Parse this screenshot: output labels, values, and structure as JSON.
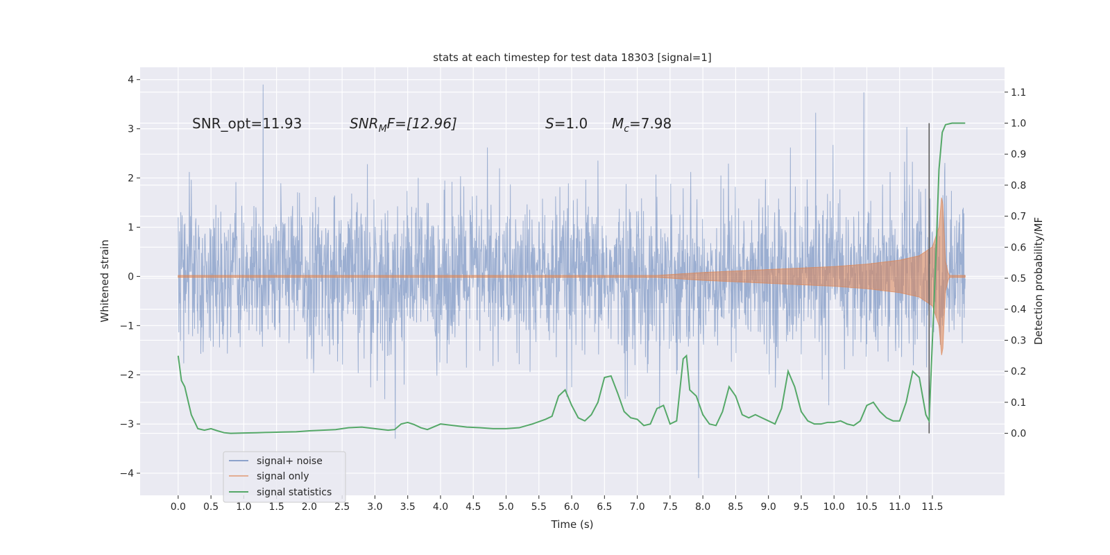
{
  "chart_data": {
    "type": "line",
    "title": "stats at each timestep for test data 18303 [signal=1]",
    "xlabel": "Time (s)",
    "ylabel": "Whitened strain",
    "ylabel_right": "Detection probability/MF",
    "xlim": [
      -0.58,
      12.6
    ],
    "ylim": [
      -4.45,
      4.25
    ],
    "ylim_right": [
      -0.2,
      1.18
    ],
    "x_ticks": [
      0.0,
      0.5,
      1.0,
      1.5,
      2.0,
      2.5,
      3.0,
      3.5,
      4.0,
      4.5,
      5.0,
      5.5,
      6.0,
      6.5,
      7.0,
      7.5,
      8.0,
      8.5,
      9.0,
      9.5,
      10.0,
      10.5,
      11.0,
      11.5
    ],
    "x_tick_labels": [
      "0.0",
      "0.5",
      "1.0",
      "1.5",
      "2.0",
      "2.5",
      "3.0",
      "3.5",
      "4.0",
      "4.5",
      "5.0",
      "5.5",
      "6.0",
      "6.5",
      "7.0",
      "7.5",
      "8.0",
      "8.5",
      "9.0",
      "9.5",
      "10.0",
      "10.5",
      "11.0",
      "11.5"
    ],
    "y_ticks": [
      -4,
      -3,
      -2,
      -1,
      0,
      1,
      2,
      3,
      4
    ],
    "y_tick_labels": [
      "−4",
      "−3",
      "−2",
      "−1",
      "0",
      "1",
      "2",
      "3",
      "4"
    ],
    "y_right_ticks": [
      0.0,
      0.1,
      0.2,
      0.3,
      0.4,
      0.5,
      0.6,
      0.7,
      0.8,
      0.9,
      1.0,
      1.1
    ],
    "y_right_tick_labels": [
      "0.0",
      "0.1",
      "0.2",
      "0.3",
      "0.4",
      "0.5",
      "0.6",
      "0.7",
      "0.8",
      "0.9",
      "1.0",
      "1.1"
    ],
    "grid": true,
    "legend_position": "lower-left",
    "annotations": {
      "snr_opt": "SNR_opt=11.93",
      "snr_mf_main": "SNR",
      "snr_mf_sub": "M",
      "snr_mf_rest": "F=[12.96]",
      "s_main": "S",
      "s_rest": "=1.0",
      "mc_main": "M",
      "mc_sub": "c",
      "mc_rest": "=7.98"
    },
    "vertical_marker_x": 11.45,
    "series": [
      {
        "name": "signal+ noise",
        "color": "#4c72b0",
        "axis": "left",
        "x_range": [
          0.0,
          12.0
        ],
        "amplitude_typical": 1.2,
        "max": 3.9,
        "min": -4.1
      },
      {
        "name": "signal only",
        "color": "#dd8452",
        "axis": "left",
        "x_range": [
          0.0,
          12.0
        ],
        "envelope": [
          {
            "x": 0.0,
            "amp": 0.02
          },
          {
            "x": 7.3,
            "amp": 0.02
          },
          {
            "x": 8.0,
            "amp": 0.08
          },
          {
            "x": 9.0,
            "amp": 0.14
          },
          {
            "x": 10.0,
            "amp": 0.2
          },
          {
            "x": 10.5,
            "amp": 0.25
          },
          {
            "x": 11.0,
            "amp": 0.33
          },
          {
            "x": 11.3,
            "amp": 0.42
          },
          {
            "x": 11.5,
            "amp": 0.6
          },
          {
            "x": 11.6,
            "amp": 1.0
          },
          {
            "x": 11.65,
            "amp": 1.75
          },
          {
            "x": 11.7,
            "amp": 0.3
          },
          {
            "x": 11.75,
            "amp": 0.02
          },
          {
            "x": 12.0,
            "amp": 0.02
          }
        ]
      },
      {
        "name": "signal statistics",
        "color": "#55a868",
        "axis": "right",
        "points": [
          [
            0.0,
            0.25
          ],
          [
            0.05,
            0.17
          ],
          [
            0.1,
            0.15
          ],
          [
            0.2,
            0.06
          ],
          [
            0.3,
            0.015
          ],
          [
            0.4,
            0.01
          ],
          [
            0.5,
            0.015
          ],
          [
            0.6,
            0.008
          ],
          [
            0.7,
            0.002
          ],
          [
            0.8,
            0.0
          ],
          [
            1.0,
            0.001
          ],
          [
            1.2,
            0.002
          ],
          [
            1.4,
            0.003
          ],
          [
            1.6,
            0.004
          ],
          [
            1.8,
            0.005
          ],
          [
            2.0,
            0.008
          ],
          [
            2.2,
            0.01
          ],
          [
            2.4,
            0.012
          ],
          [
            2.6,
            0.018
          ],
          [
            2.8,
            0.02
          ],
          [
            3.0,
            0.015
          ],
          [
            3.2,
            0.01
          ],
          [
            3.3,
            0.012
          ],
          [
            3.4,
            0.03
          ],
          [
            3.5,
            0.035
          ],
          [
            3.6,
            0.028
          ],
          [
            3.7,
            0.018
          ],
          [
            3.8,
            0.012
          ],
          [
            4.0,
            0.03
          ],
          [
            4.2,
            0.025
          ],
          [
            4.4,
            0.02
          ],
          [
            4.6,
            0.018
          ],
          [
            4.8,
            0.015
          ],
          [
            5.0,
            0.015
          ],
          [
            5.2,
            0.018
          ],
          [
            5.4,
            0.03
          ],
          [
            5.6,
            0.045
          ],
          [
            5.7,
            0.055
          ],
          [
            5.8,
            0.12
          ],
          [
            5.9,
            0.14
          ],
          [
            6.0,
            0.09
          ],
          [
            6.1,
            0.05
          ],
          [
            6.2,
            0.04
          ],
          [
            6.3,
            0.06
          ],
          [
            6.4,
            0.1
          ],
          [
            6.5,
            0.18
          ],
          [
            6.6,
            0.185
          ],
          [
            6.7,
            0.13
          ],
          [
            6.8,
            0.07
          ],
          [
            6.9,
            0.05
          ],
          [
            7.0,
            0.045
          ],
          [
            7.1,
            0.025
          ],
          [
            7.2,
            0.03
          ],
          [
            7.3,
            0.08
          ],
          [
            7.4,
            0.09
          ],
          [
            7.5,
            0.03
          ],
          [
            7.6,
            0.04
          ],
          [
            7.7,
            0.24
          ],
          [
            7.75,
            0.25
          ],
          [
            7.8,
            0.14
          ],
          [
            7.9,
            0.12
          ],
          [
            8.0,
            0.06
          ],
          [
            8.1,
            0.03
          ],
          [
            8.2,
            0.025
          ],
          [
            8.3,
            0.07
          ],
          [
            8.4,
            0.15
          ],
          [
            8.5,
            0.12
          ],
          [
            8.6,
            0.06
          ],
          [
            8.7,
            0.05
          ],
          [
            8.8,
            0.06
          ],
          [
            8.9,
            0.05
          ],
          [
            9.0,
            0.04
          ],
          [
            9.1,
            0.03
          ],
          [
            9.2,
            0.08
          ],
          [
            9.3,
            0.2
          ],
          [
            9.4,
            0.15
          ],
          [
            9.5,
            0.07
          ],
          [
            9.6,
            0.04
          ],
          [
            9.7,
            0.03
          ],
          [
            9.8,
            0.03
          ],
          [
            9.9,
            0.035
          ],
          [
            10.0,
            0.035
          ],
          [
            10.1,
            0.04
          ],
          [
            10.2,
            0.03
          ],
          [
            10.3,
            0.025
          ],
          [
            10.4,
            0.04
          ],
          [
            10.5,
            0.09
          ],
          [
            10.6,
            0.1
          ],
          [
            10.7,
            0.07
          ],
          [
            10.8,
            0.05
          ],
          [
            10.9,
            0.04
          ],
          [
            11.0,
            0.04
          ],
          [
            11.1,
            0.1
          ],
          [
            11.2,
            0.2
          ],
          [
            11.3,
            0.18
          ],
          [
            11.4,
            0.06
          ],
          [
            11.45,
            0.04
          ],
          [
            11.5,
            0.3
          ],
          [
            11.55,
            0.55
          ],
          [
            11.6,
            0.85
          ],
          [
            11.65,
            0.97
          ],
          [
            11.7,
            0.995
          ],
          [
            11.8,
            1.0
          ],
          [
            11.9,
            1.0
          ],
          [
            12.0,
            1.0
          ]
        ]
      }
    ]
  }
}
